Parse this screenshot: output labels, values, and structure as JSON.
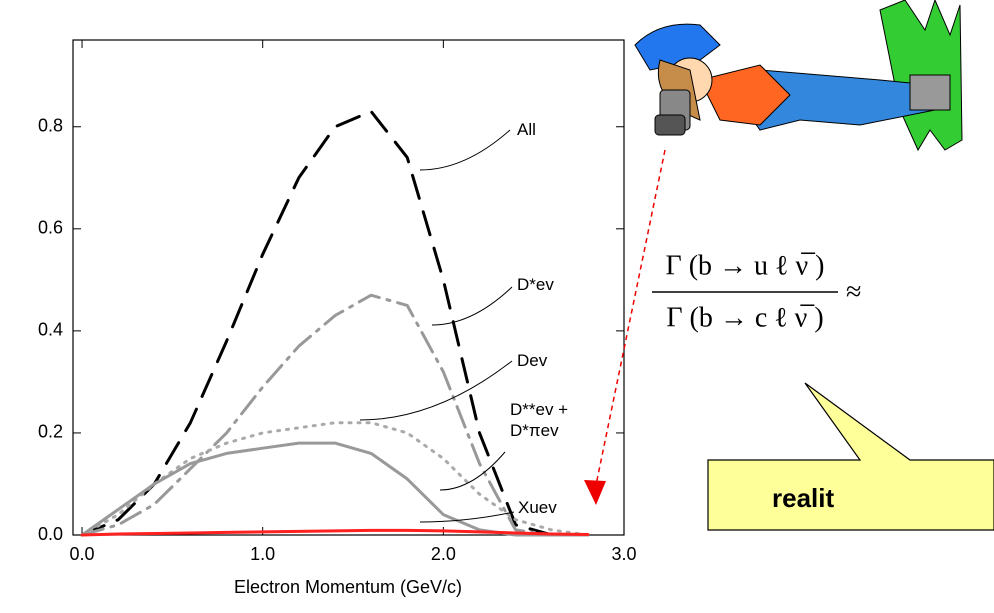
{
  "chart_data": {
    "type": "line",
    "x_label": "Electron Momentum (GeV/c)",
    "x": [
      0,
      0.2,
      0.4,
      0.6,
      0.8,
      1.0,
      1.2,
      1.4,
      1.6,
      1.8,
      2.0,
      2.2,
      2.4,
      2.6,
      2.8
    ],
    "series": [
      {
        "name": "All",
        "color": "#000000",
        "style": "dash",
        "values": [
          0,
          0.03,
          0.1,
          0.22,
          0.38,
          0.55,
          0.7,
          0.8,
          0.83,
          0.74,
          0.5,
          0.2,
          0.02,
          0,
          0
        ]
      },
      {
        "name": "D*ev",
        "color": "#999999",
        "style": "dashdot",
        "values": [
          0,
          0.02,
          0.06,
          0.13,
          0.2,
          0.29,
          0.37,
          0.43,
          0.47,
          0.45,
          0.32,
          0.14,
          0.01,
          0,
          0
        ]
      },
      {
        "name": "Dev",
        "color": "#aaaaaa",
        "style": "dot",
        "values": [
          0,
          0.04,
          0.1,
          0.15,
          0.18,
          0.2,
          0.21,
          0.22,
          0.22,
          0.2,
          0.15,
          0.08,
          0.03,
          0.01,
          0
        ]
      },
      {
        "name": "D**ev + D*πev",
        "color": "#999999",
        "style": "solid",
        "values": [
          0,
          0.05,
          0.1,
          0.14,
          0.16,
          0.17,
          0.18,
          0.18,
          0.16,
          0.11,
          0.04,
          0.01,
          0,
          0,
          0
        ]
      },
      {
        "name": "Xuev",
        "color": "#ff2020",
        "style": "solid",
        "values": [
          0,
          0.002,
          0.003,
          0.004,
          0.005,
          0.006,
          0.007,
          0.008,
          0.009,
          0.009,
          0.008,
          0.006,
          0.004,
          0.002,
          0.001
        ]
      }
    ],
    "xlim": [
      -0.05,
      3.0
    ],
    "ylim": [
      0,
      0.97
    ],
    "xticks": [
      {
        "value": 0,
        "label": "0.0"
      },
      {
        "value": 1,
        "label": "1.0"
      },
      {
        "value": 2,
        "label": "2.0"
      },
      {
        "value": 3,
        "label": "3.0"
      }
    ],
    "yticks": [
      {
        "value": 0,
        "label": "0.0"
      },
      {
        "value": 0.2,
        "label": "0.2"
      },
      {
        "value": 0.4,
        "label": "0.4"
      },
      {
        "value": 0.6,
        "label": "0.6"
      },
      {
        "value": 0.8,
        "label": "0.8"
      }
    ],
    "grid": false
  },
  "equation": {
    "numerator": "Γ (b → u ℓ ν̅ )",
    "denominator": "Γ (b → c ℓ ν̅ )",
    "relation": "≈"
  },
  "callout": "realit"
}
